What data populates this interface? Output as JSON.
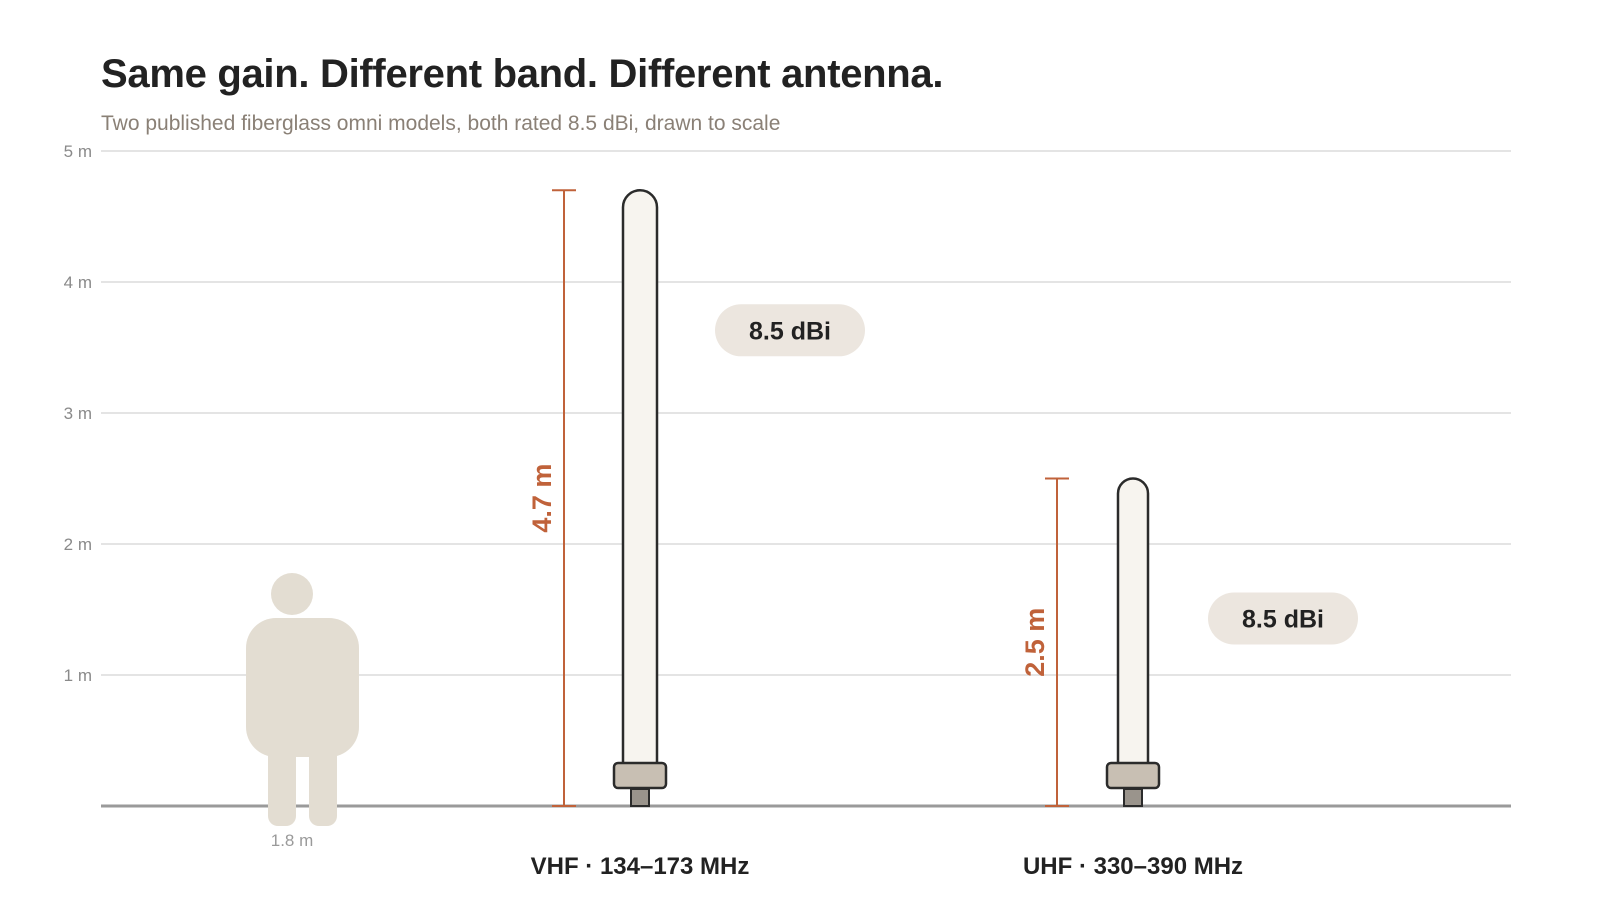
{
  "title": "Same gain. Different band. Different antenna.",
  "subtitle": "Two published fiberglass omni models, both rated 8.5 dBi, drawn to scale",
  "chart_data": {
    "type": "bar",
    "ylabel": "",
    "ylim": [
      0,
      5
    ],
    "yticks": [
      {
        "value": 1,
        "label": "1 m"
      },
      {
        "value": 2,
        "label": "2 m"
      },
      {
        "value": 3,
        "label": "3 m"
      },
      {
        "value": 4,
        "label": "4 m"
      },
      {
        "value": 5,
        "label": "5 m"
      }
    ],
    "grid": true,
    "reference": {
      "label": "1.8 m",
      "value": 1.8
    },
    "antennas": [
      {
        "band": "VHF · 134–173 MHz",
        "height": 4.7,
        "height_label": "4.7 m",
        "gain_label": "8.5 dBi"
      },
      {
        "band": "UHF · 330–390 MHz",
        "height": 2.5,
        "height_label": "2.5 m",
        "gain_label": "8.5 dBi"
      }
    ]
  },
  "colors": {
    "accent": "#c0623a",
    "antenna_fill": "#f7f4ef",
    "antenna_stroke": "#2b2b2b",
    "base_fill": "#c8bfb3",
    "connector_fill": "#9a948c",
    "badge_fill": "#ece6df",
    "person_fill": "#e3ddd2",
    "grid": "#dcdcdc",
    "ground": "#9a9a9a"
  }
}
